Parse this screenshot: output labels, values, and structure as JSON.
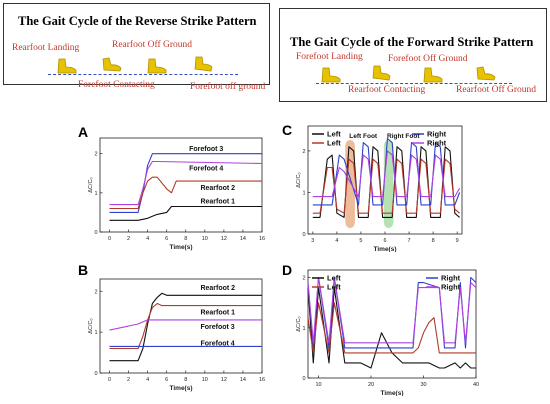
{
  "top_left": {
    "title": "The Gait Cycle of the Reverse Strike Pattern",
    "phases": [
      "Rearfoot Landing",
      "Rearfoot Off Ground",
      "Forefoot Contacting",
      "Forefoot off ground"
    ]
  },
  "top_right": {
    "title": "The Gait Cycle of the Forward Strike Pattern",
    "phases": [
      "Forefoot Landing",
      "Forefoot Off Ground",
      "Rearfoot Contacting",
      "Rearfoot Off Ground"
    ]
  },
  "colors": {
    "phase_text": "#c0392b",
    "foot": "#e6c200",
    "dash": "#3b4cc0",
    "black": "#111111",
    "red": "#b23a2a",
    "blue": "#2f3fd0",
    "purple": "#b040e0",
    "orange_highlight": "#e8a47a",
    "green_highlight": "#9ed89a"
  },
  "chart_data": [
    {
      "id": "A",
      "type": "line",
      "xlabel": "Time(s)",
      "ylabel": "ΔC/C₀",
      "xlim": [
        -1,
        16
      ],
      "ylim": [
        0,
        2.4
      ],
      "xticks": [
        "0",
        "2",
        "4",
        "6",
        "8",
        "10",
        "12",
        "14",
        "16"
      ],
      "yticks": [
        "0",
        "1",
        "2"
      ],
      "series": [
        {
          "name": "Forefoot 3",
          "color": "#2f3fd0",
          "x": [
            0,
            3,
            3.5,
            4,
            4.5,
            5,
            16
          ],
          "y": [
            0.5,
            0.5,
            1.0,
            1.7,
            2.0,
            2.0,
            2.0
          ]
        },
        {
          "name": "Forefoot 4",
          "color": "#b040e0",
          "x": [
            0,
            3,
            3.5,
            4,
            4.5,
            5,
            16
          ],
          "y": [
            0.7,
            0.7,
            1.1,
            1.6,
            1.8,
            1.8,
            1.75
          ]
        },
        {
          "name": "Rearfoot 2",
          "color": "#b23a2a",
          "x": [
            0,
            3,
            3.5,
            4,
            4.5,
            5,
            6,
            6.5,
            7,
            16
          ],
          "y": [
            0.6,
            0.6,
            1.0,
            1.3,
            1.4,
            1.4,
            1.1,
            1.0,
            1.3,
            1.3
          ]
        },
        {
          "name": "Rearfoot 1",
          "color": "#111111",
          "x": [
            0,
            3,
            4,
            4.5,
            5,
            6,
            6.5,
            16
          ],
          "y": [
            0.3,
            0.3,
            0.35,
            0.4,
            0.45,
            0.5,
            0.65,
            0.65
          ]
        }
      ]
    },
    {
      "id": "B",
      "type": "line",
      "xlabel": "Time(s)",
      "ylabel": "ΔC/C₀",
      "xlim": [
        -1,
        16
      ],
      "ylim": [
        0,
        2.3
      ],
      "xticks": [
        "0",
        "2",
        "4",
        "6",
        "8",
        "10",
        "12",
        "14",
        "16"
      ],
      "yticks": [
        "0",
        "1",
        "2"
      ],
      "series": [
        {
          "name": "Rearfoot 2",
          "color": "#111111",
          "x": [
            0,
            3,
            3.5,
            4,
            4.5,
            5,
            5.5,
            6,
            16
          ],
          "y": [
            0.3,
            0.3,
            0.6,
            1.2,
            1.7,
            1.85,
            1.95,
            1.9,
            1.9
          ]
        },
        {
          "name": "Rearfoot 1",
          "color": "#b23a2a",
          "x": [
            0,
            3,
            3.5,
            4,
            4.5,
            5,
            5.5,
            6,
            16
          ],
          "y": [
            0.6,
            0.6,
            0.9,
            1.3,
            1.6,
            1.7,
            1.65,
            1.65,
            1.65
          ]
        },
        {
          "name": "Forefoot 3",
          "color": "#b040e0",
          "x": [
            0,
            2,
            3,
            3.5,
            4,
            16
          ],
          "y": [
            1.05,
            1.15,
            1.2,
            1.25,
            1.3,
            1.3
          ]
        },
        {
          "name": "Forefoot 4",
          "color": "#2f3fd0",
          "x": [
            0,
            3,
            4,
            16
          ],
          "y": [
            0.65,
            0.65,
            0.65,
            0.65
          ]
        }
      ]
    },
    {
      "id": "C",
      "type": "line",
      "xlabel": "Time(s)",
      "ylabel": "ΔC/C₀",
      "xlim": [
        2.8,
        9.2
      ],
      "ylim": [
        0,
        2.6
      ],
      "xticks": [
        "3",
        "4",
        "5",
        "6",
        "7",
        "8",
        "9"
      ],
      "yticks": [
        "0",
        "1",
        "2"
      ],
      "legend_left": [
        "Left",
        "Left"
      ],
      "legend_right": [
        "Right",
        "Right"
      ],
      "annotations": [
        "Left Foot",
        "Right Foot"
      ],
      "highlight_ranges": [
        [
          4.35,
          4.75
        ],
        [
          5.95,
          6.35
        ]
      ],
      "series": [
        {
          "name": "Left",
          "color": "#111111",
          "x": [
            3,
            3.3,
            3.6,
            3.8,
            4.0,
            4.3,
            4.5,
            4.7,
            4.9,
            5.3,
            5.5,
            5.7,
            5.9,
            6.3,
            6.5,
            6.7,
            6.9,
            7.3,
            7.5,
            7.7,
            7.9,
            8.3,
            8.5,
            8.7,
            8.9,
            9.1
          ],
          "y": [
            0.4,
            0.4,
            1.8,
            1.9,
            0.5,
            0.4,
            2.1,
            2.0,
            0.4,
            0.4,
            2.1,
            2.0,
            0.4,
            0.4,
            2.1,
            2.0,
            0.4,
            0.4,
            2.1,
            2.0,
            0.4,
            0.4,
            2.1,
            2.0,
            0.5,
            0.4
          ]
        },
        {
          "name": "Left",
          "color": "#b23a2a",
          "x": [
            3,
            3.3,
            3.6,
            3.8,
            4.0,
            4.3,
            4.5,
            4.7,
            4.9,
            5.3,
            5.5,
            5.7,
            5.9,
            6.3,
            6.5,
            6.7,
            6.9,
            7.3,
            7.5,
            7.7,
            7.9,
            8.3,
            8.5,
            8.7,
            8.9,
            9.1
          ],
          "y": [
            0.5,
            0.5,
            1.6,
            1.6,
            0.6,
            0.5,
            1.8,
            1.7,
            0.5,
            0.5,
            1.8,
            1.7,
            0.5,
            0.5,
            1.8,
            1.7,
            0.5,
            0.5,
            1.8,
            1.7,
            0.5,
            0.5,
            1.8,
            1.7,
            0.6,
            0.5
          ]
        },
        {
          "name": "Right",
          "color": "#2f3fd0",
          "x": [
            3,
            3.6,
            3.8,
            4.1,
            4.3,
            4.9,
            5.1,
            5.3,
            5.5,
            5.9,
            6.1,
            6.3,
            6.5,
            6.9,
            7.1,
            7.3,
            7.5,
            7.9,
            8.1,
            8.3,
            8.5,
            8.9,
            9.1
          ],
          "y": [
            0.7,
            0.7,
            0.7,
            1.9,
            1.8,
            0.7,
            2.2,
            2.1,
            0.7,
            0.7,
            2.3,
            2.2,
            0.7,
            0.7,
            2.2,
            2.1,
            0.7,
            0.7,
            2.2,
            2.1,
            0.7,
            0.7,
            1.0
          ]
        },
        {
          "name": "Right",
          "color": "#b040e0",
          "x": [
            3,
            3.6,
            3.8,
            4.1,
            4.3,
            4.9,
            5.1,
            5.3,
            5.5,
            5.9,
            6.1,
            6.3,
            6.5,
            6.9,
            7.1,
            7.3,
            7.5,
            7.9,
            8.1,
            8.3,
            8.5,
            8.9,
            9.1
          ],
          "y": [
            0.9,
            0.9,
            0.9,
            1.6,
            1.5,
            0.9,
            1.9,
            1.8,
            0.9,
            0.9,
            2.0,
            1.9,
            0.9,
            0.9,
            1.9,
            1.8,
            0.9,
            0.9,
            1.9,
            1.8,
            0.9,
            0.9,
            1.1
          ]
        }
      ]
    },
    {
      "id": "D",
      "type": "line",
      "xlabel": "Time(s)",
      "ylabel": "ΔC/C₀",
      "xlim": [
        8,
        40
      ],
      "ylim": [
        0,
        2.15
      ],
      "xticks": [
        "10",
        "20",
        "30",
        "40"
      ],
      "yticks": [
        "0",
        "1",
        "2"
      ],
      "legend_left": [
        "Left",
        "Left"
      ],
      "legend_right": [
        "Right",
        "Right"
      ],
      "series": [
        {
          "name": "Left",
          "color": "#111111",
          "x": [
            8,
            9,
            10,
            12,
            13,
            15,
            16,
            18,
            20,
            22,
            24,
            26,
            28,
            30,
            31,
            33,
            34,
            36,
            37,
            38,
            39,
            40
          ],
          "y": [
            1.8,
            0.3,
            1.8,
            0.3,
            1.8,
            0.3,
            0.3,
            0.3,
            0.2,
            0.9,
            0.5,
            0.3,
            0.3,
            0.3,
            0.3,
            0.2,
            0.2,
            0.3,
            0.2,
            0.3,
            0.2,
            0.2
          ]
        },
        {
          "name": "Left",
          "color": "#b23a2a",
          "x": [
            8,
            9,
            10,
            12,
            13,
            15,
            16,
            20,
            22,
            26,
            28,
            29,
            30,
            31,
            32,
            33,
            34,
            36,
            37,
            38,
            39,
            40
          ],
          "y": [
            1.2,
            0.5,
            1.5,
            0.5,
            1.5,
            0.5,
            0.5,
            0.5,
            0.5,
            0.5,
            0.5,
            0.6,
            0.9,
            1.1,
            1.2,
            0.5,
            0.5,
            0.5,
            0.5,
            0.5,
            0.5,
            0.5
          ]
        },
        {
          "name": "Right",
          "color": "#2f3fd0",
          "x": [
            8,
            9,
            10,
            12,
            13,
            15,
            16,
            20,
            22,
            26,
            28,
            29,
            30,
            33,
            34,
            36,
            37,
            38,
            39,
            40
          ],
          "y": [
            1.9,
            0.6,
            2.0,
            0.6,
            2.0,
            0.6,
            0.6,
            0.6,
            0.6,
            0.6,
            0.6,
            1.9,
            1.9,
            1.8,
            0.6,
            0.6,
            1.9,
            0.6,
            2.0,
            1.9
          ]
        },
        {
          "name": "Right",
          "color": "#b040e0",
          "x": [
            8,
            9,
            10,
            12,
            13,
            15,
            16,
            20,
            22,
            26,
            28,
            29,
            30,
            33,
            34,
            36,
            37,
            38,
            39,
            40
          ],
          "y": [
            1.9,
            0.7,
            2.0,
            0.7,
            2.0,
            0.7,
            0.7,
            0.7,
            0.7,
            0.7,
            0.7,
            1.8,
            1.8,
            1.8,
            0.7,
            0.7,
            1.8,
            0.7,
            1.9,
            1.8
          ]
        }
      ]
    }
  ]
}
